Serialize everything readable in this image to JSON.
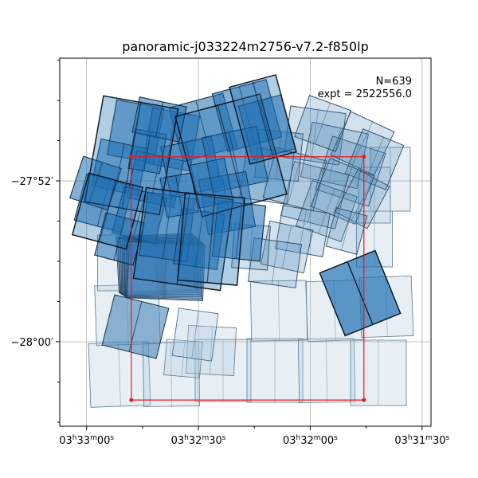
{
  "chart_data": {
    "type": "footprint-map",
    "title": "panoramic-j033224m2756-v7.2-f850lp",
    "xlabel": "",
    "ylabel": "",
    "annotations": {
      "n": "N=639",
      "expt": "expt = 2522556.0"
    },
    "x_ticks": [
      {
        "h": "03",
        "m": "33",
        "s": "00",
        "value_deg": 53.25
      },
      {
        "h": "03",
        "m": "32",
        "s": "30",
        "value_deg": 53.125
      },
      {
        "h": "03",
        "m": "32",
        "s": "00",
        "value_deg": 53.0
      },
      {
        "h": "03",
        "m": "31",
        "s": "30",
        "value_deg": 52.875
      }
    ],
    "y_ticks": [
      {
        "label": "−27°52′",
        "value_deg": -27.8667
      },
      {
        "label": "−28°00′",
        "value_deg": -28.0
      }
    ],
    "xlim_deg": [
      53.28,
      52.865
    ],
    "ylim_deg": [
      -28.07,
      -27.765
    ],
    "grid": true,
    "selection_box_deg": {
      "ra_min": 52.94,
      "ra_max": 53.2,
      "dec_min": -28.0483,
      "dec_max": -27.8467
    },
    "colors": {
      "exposure_dark": "#1f6fb2",
      "exposure_mid": "#4a86b9",
      "exposure_light": "#aac6dc",
      "exposure_edge": "#0b1f33",
      "selection_box": "#e8181c",
      "grid": "#b0b0b0"
    }
  }
}
